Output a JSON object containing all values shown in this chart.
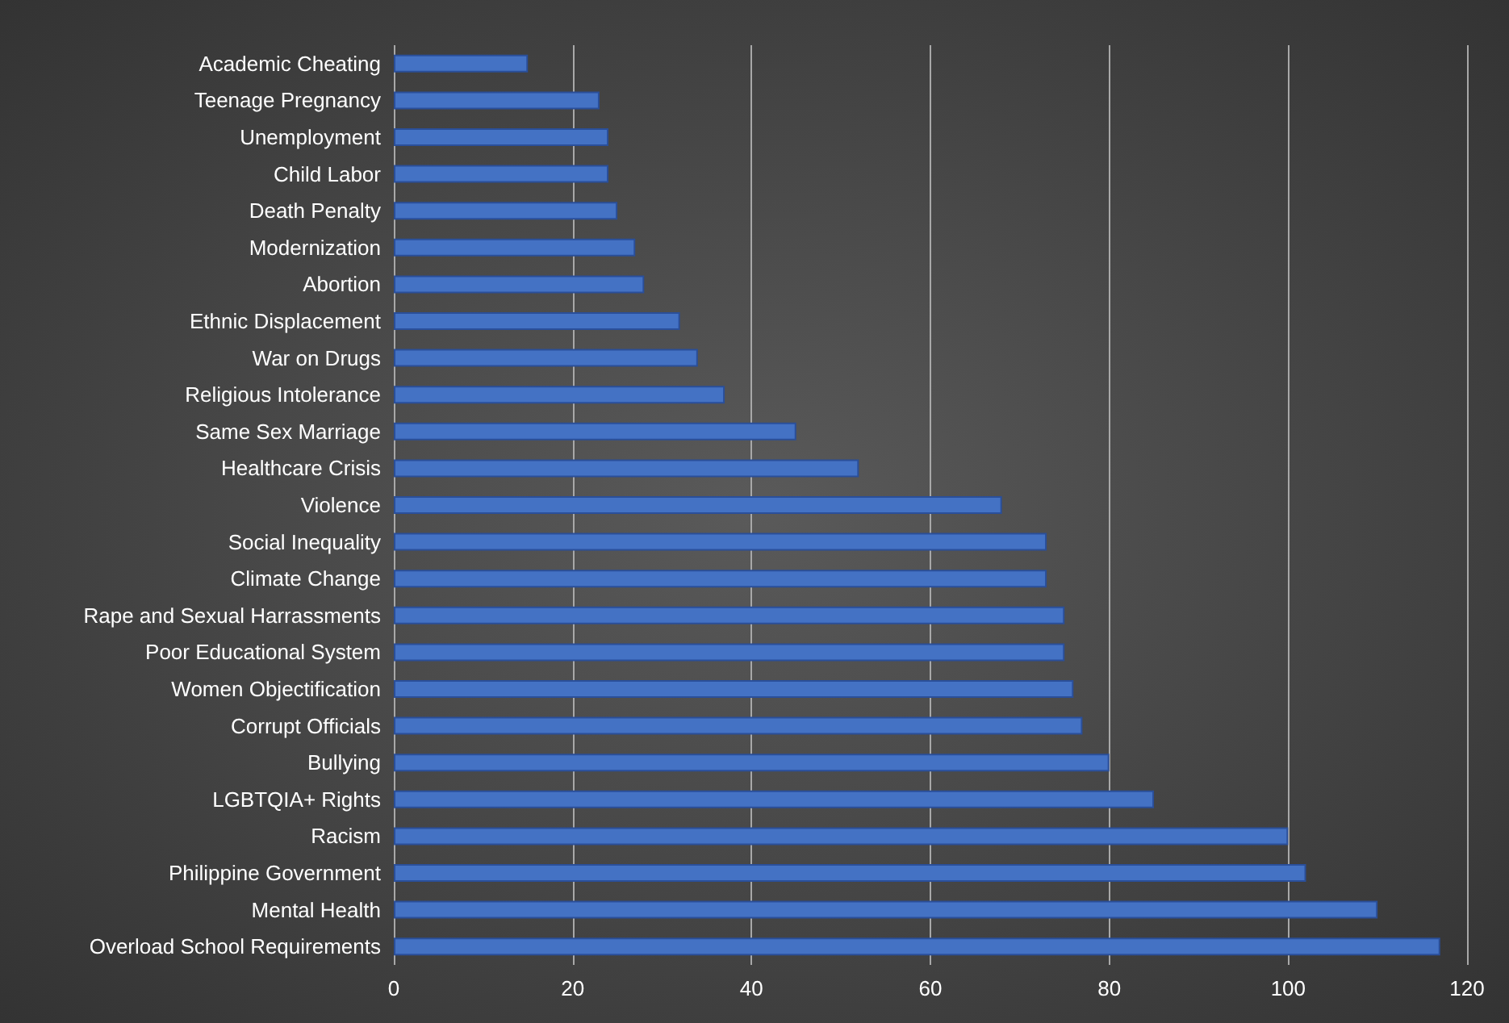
{
  "chart_data": {
    "type": "bar",
    "orientation": "horizontal",
    "categories": [
      "Academic Cheating",
      "Teenage Pregnancy",
      "Unemployment",
      "Child Labor",
      "Death Penalty",
      "Modernization",
      "Abortion",
      "Ethnic Displacement",
      "War on Drugs",
      "Religious Intolerance",
      "Same Sex Marriage",
      "Healthcare Crisis",
      "Violence",
      "Social Inequality",
      "Climate Change",
      "Rape and Sexual Harrassments",
      "Poor Educational System",
      "Women Objectification",
      "Corrupt Officials",
      "Bullying",
      "LGBTQIA+ Rights",
      "Racism",
      "Philippine Government",
      "Mental Health",
      "Overload School Requirements"
    ],
    "values": [
      15,
      23,
      24,
      24,
      25,
      27,
      28,
      32,
      34,
      37,
      45,
      52,
      68,
      73,
      73,
      75,
      75,
      76,
      77,
      80,
      85,
      100,
      102,
      110,
      117
    ],
    "color": "#4472c4",
    "xlim": [
      0,
      120
    ],
    "xticks": [
      0,
      20,
      40,
      60,
      80,
      100,
      120
    ],
    "grid": "x"
  }
}
